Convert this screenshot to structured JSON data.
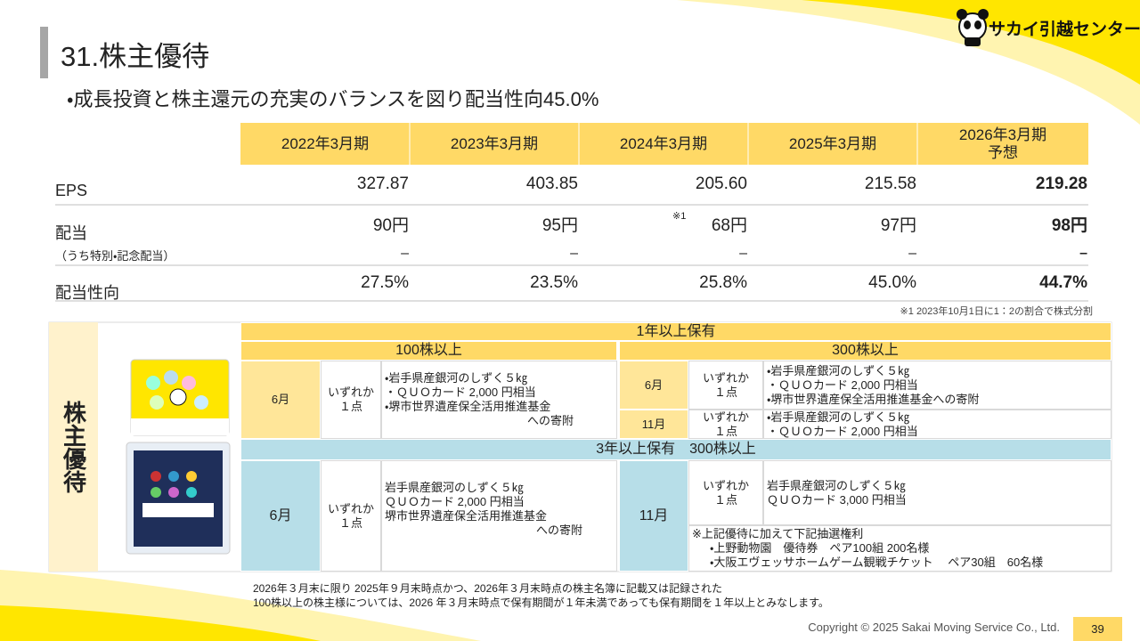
{
  "header": {
    "title": "31.株主優待",
    "logo": "サカイ引越センター"
  },
  "lead": "・成長投資と株主還元の充実のバランスを図り配当性向45.0%",
  "table": {
    "columns": [
      "2022年3月期",
      "2023年3月期",
      "2024年3月期",
      "2025年3月期",
      "2026年3月期"
    ],
    "forecast_label": "予想",
    "rows": [
      {
        "label": "EPS",
        "cells": [
          "327.87",
          "403.85",
          "205.60",
          "215.58",
          "219.28"
        ]
      },
      {
        "label": "配当",
        "cells": [
          "90円",
          "95円",
          "68円",
          "97円",
          "98円"
        ],
        "note_mark": "※1"
      },
      {
        "label": "（うち特別・記念配当）",
        "cells": [
          "–",
          "–",
          "–",
          "–",
          "–"
        ]
      },
      {
        "label": "配当性向",
        "cells": [
          "27.5%",
          "23.5%",
          "25.8%",
          "45.0%",
          "44.7%"
        ]
      }
    ],
    "footnote": {
      "mark": "※1",
      "text": "2023年10月1日に1：2の割合で株式分割"
    }
  },
  "benefits": {
    "side_label": "株主優待",
    "one_year": {
      "heading": "1年以上保有",
      "shares_100": {
        "heading": "100株以上",
        "month": "6月",
        "choice": [
          "いずれか",
          "１点"
        ],
        "items": [
          "・岩手県産銀河のしずく５㎏",
          "・ＱＵＯカード 2,000 円相当",
          "・堺市世界遺産保全活用推進基金",
          "への寄附"
        ]
      },
      "shares_300": {
        "heading": "300株以上",
        "june": {
          "month": "6月",
          "choice": [
            "いずれか",
            "１点"
          ],
          "items": [
            "・岩手県産銀河のしずく５㎏",
            "・ＱＵＯカード 2,000 円相当",
            "・堺市世界遺産保全活用推進基金への寄附"
          ]
        },
        "november": {
          "month": "11月",
          "choice": [
            "いずれか",
            "１点"
          ],
          "items": [
            "・岩手県産銀河のしずく５㎏",
            "・ＱＵＯカード 2,000 円相当"
          ]
        }
      }
    },
    "three_year": {
      "heading": "3年以上保有　300株以上",
      "june": {
        "month": "6月",
        "choice": [
          "いずれか",
          "１点"
        ],
        "items": [
          "岩手県産銀河のしずく５㎏",
          "ＱＵＯカード 2,000 円相当",
          "堺市世界遺産保全活用推進基金",
          "への寄附"
        ]
      },
      "november": {
        "month": "11月",
        "choice": [
          "いずれか",
          "１点"
        ],
        "items": [
          "岩手県産銀河のしずく５㎏",
          "ＱＵＯカード 3,000 円相当"
        ],
        "lottery": [
          "※上記優待に加えて下記抽選権利",
          "・上野動物園　優待券　ペア100組 200名様",
          "・大阪エヴェッサホームゲーム観戦チケット　 ペア30組　60名様"
        ]
      }
    }
  },
  "notes": [
    "2026年３月末に限り 2025年９月末時点かつ、2026年３月末時点の株主名簿に記載又は記録された",
    "100株以上の株主様については、2026 年３月末時点で保有期間が１年未満であっても保有期間を１年以上とみなします。"
  ],
  "footer": {
    "copyright": "Copyright © 2025 Sakai Moving Service Co., Ltd.",
    "page": "39"
  }
}
